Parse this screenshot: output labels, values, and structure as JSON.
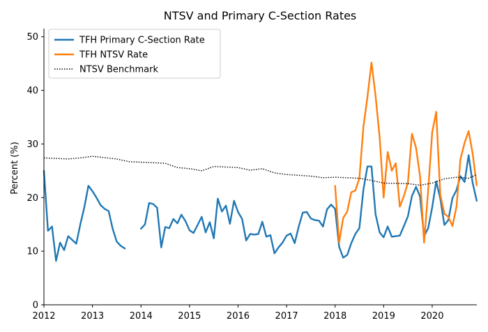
{
  "chart_data": {
    "type": "line",
    "title": "NTSV and Primary C-Section Rates",
    "xlabel": "",
    "ylabel": "Percent (%)",
    "xlim": [
      2012.0,
      2020.92
    ],
    "ylim": [
      0,
      51
    ],
    "x_ticks": [
      2012,
      2013,
      2014,
      2015,
      2016,
      2017,
      2018,
      2019,
      2020
    ],
    "x_tick_labels": [
      "2012",
      "2013",
      "2014",
      "2015",
      "2016",
      "2017",
      "2018",
      "2019",
      "2020"
    ],
    "y_ticks": [
      0,
      10,
      20,
      30,
      40,
      50
    ],
    "y_tick_labels": [
      "0",
      "10",
      "20",
      "30",
      "40",
      "50"
    ],
    "legend_position": "top-left",
    "series": [
      {
        "name": "TFH Primary C-Section Rate",
        "color": "#1f77b4",
        "style": "solid",
        "segments": [
          {
            "x": [
              2012.0,
              2012.083,
              2012.167,
              2012.25,
              2012.333,
              2012.417,
              2012.5,
              2012.583,
              2012.667,
              2012.75,
              2012.833,
              2012.917,
              2013.0,
              2013.083,
              2013.167,
              2013.25,
              2013.333,
              2013.417,
              2013.5,
              2013.583,
              2013.667
            ],
            "y": [
              25.0,
              13.8,
              14.6,
              8.2,
              11.6,
              10.2,
              12.8,
              12.1,
              11.4,
              15.0,
              18.2,
              22.2,
              21.2,
              20.0,
              18.6,
              17.9,
              17.5,
              14.2,
              11.8,
              11.0,
              10.5
            ]
          },
          {
            "x": [
              2014.0,
              2014.083,
              2014.167,
              2014.25,
              2014.333,
              2014.417,
              2014.5,
              2014.583,
              2014.667,
              2014.75,
              2014.833,
              2014.917,
              2015.0,
              2015.083,
              2015.167,
              2015.25,
              2015.333,
              2015.417,
              2015.5,
              2015.583,
              2015.667,
              2015.75,
              2015.833,
              2015.917,
              2016.0,
              2016.083,
              2016.167,
              2016.25,
              2016.333,
              2016.417,
              2016.5,
              2016.583,
              2016.667,
              2016.75,
              2016.833,
              2016.917,
              2017.0,
              2017.083,
              2017.167,
              2017.25,
              2017.333,
              2017.417,
              2017.5,
              2017.583,
              2017.667,
              2017.75,
              2017.833,
              2017.917,
              2018.0,
              2018.083,
              2018.167,
              2018.25,
              2018.333,
              2018.417,
              2018.5,
              2018.583,
              2018.667,
              2018.75,
              2018.833,
              2018.917,
              2019.0,
              2019.083,
              2019.167,
              2019.25,
              2019.333,
              2019.417,
              2019.5,
              2019.583,
              2019.667,
              2019.75,
              2019.833,
              2019.917,
              2020.0,
              2020.083,
              2020.167,
              2020.25,
              2020.333,
              2020.417,
              2020.5,
              2020.583,
              2020.667,
              2020.75,
              2020.833,
              2020.917
            ],
            "y": [
              14.2,
              15.0,
              19.0,
              18.8,
              18.1,
              10.7,
              14.5,
              14.3,
              16.0,
              15.2,
              16.8,
              15.6,
              13.9,
              13.4,
              14.9,
              16.4,
              13.5,
              15.4,
              12.4,
              19.8,
              17.4,
              18.5,
              15.1,
              19.4,
              17.3,
              16.0,
              12.0,
              13.2,
              13.1,
              13.2,
              15.5,
              12.7,
              13.0,
              9.6,
              10.7,
              11.6,
              12.9,
              13.3,
              11.5,
              14.6,
              17.2,
              17.3,
              16.1,
              15.8,
              15.7,
              14.6,
              17.8,
              18.7,
              17.9,
              10.8,
              8.8,
              9.3,
              11.5,
              13.2,
              14.3,
              21.5,
              25.8,
              25.8,
              16.9,
              13.5,
              12.6,
              14.6,
              12.7,
              12.8,
              12.9,
              14.7,
              16.5,
              20.3,
              22.0,
              20.2,
              12.8,
              14.3,
              18.2,
              23.0,
              19.8,
              14.9,
              15.8,
              19.9,
              21.4,
              24.0,
              22.9,
              27.9,
              22.8,
              19.4
            ]
          }
        ]
      },
      {
        "name": "TFH NTSV Rate",
        "color": "#ff7f0e",
        "style": "solid",
        "segments": [
          {
            "x": [
              2018.0,
              2018.083,
              2018.167,
              2018.25,
              2018.333,
              2018.417,
              2018.5,
              2018.583,
              2018.667,
              2018.75,
              2018.833,
              2018.917,
              2019.0,
              2019.083,
              2019.167,
              2019.25,
              2019.333,
              2019.417,
              2019.5,
              2019.583,
              2019.667,
              2019.75,
              2019.833,
              2019.917,
              2020.0,
              2020.083,
              2020.167,
              2020.25,
              2020.333,
              2020.417,
              2020.5,
              2020.583,
              2020.667,
              2020.75,
              2020.833,
              2020.917
            ],
            "y": [
              22.2,
              11.6,
              16.2,
              17.4,
              21.0,
              21.3,
              23.6,
              33.2,
              38.8,
              45.2,
              39.0,
              31.2,
              20.0,
              28.5,
              25.0,
              26.4,
              18.3,
              20.3,
              22.8,
              31.9,
              29.3,
              24.0,
              11.6,
              21.4,
              32.2,
              36.0,
              20.5,
              17.0,
              16.4,
              14.7,
              18.3,
              27.2,
              30.2,
              32.4,
              28.3,
              22.3
            ]
          }
        ]
      },
      {
        "name": "NTSV Benchmark",
        "color": "#000000",
        "style": "dotted",
        "segments": [
          {
            "x": [
              2012.0,
              2012.5,
              2012.75,
              2013.0,
              2013.5,
              2013.75,
              2014.0,
              2014.5,
              2014.75,
              2015.0,
              2015.25,
              2015.5,
              2016.0,
              2016.25,
              2016.5,
              2016.75,
              2017.0,
              2017.5,
              2017.75,
              2018.0,
              2018.5,
              2018.75,
              2019.0,
              2019.5,
              2019.75,
              2020.0,
              2020.25,
              2020.5,
              2020.75,
              2020.917
            ],
            "y": [
              27.4,
              27.2,
              27.4,
              27.7,
              27.2,
              26.7,
              26.6,
              26.4,
              25.6,
              25.4,
              25.0,
              25.8,
              25.6,
              25.1,
              25.4,
              24.6,
              24.3,
              24.0,
              23.7,
              23.8,
              23.6,
              23.2,
              22.7,
              22.6,
              22.3,
              22.7,
              23.5,
              23.8,
              23.6,
              24.3
            ]
          }
        ]
      }
    ]
  }
}
